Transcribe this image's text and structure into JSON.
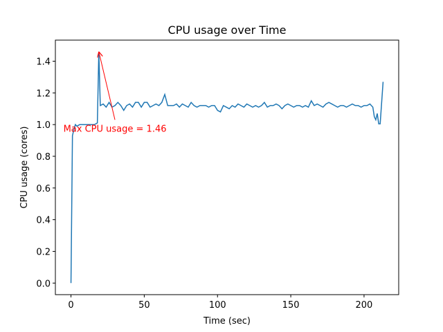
{
  "chart_data": {
    "type": "line",
    "title": "CPU usage over Time",
    "xlabel": "Time (sec)",
    "ylabel": "CPU usage (cores)",
    "x": [
      0,
      1,
      2,
      3,
      4,
      6,
      8,
      10,
      12,
      14,
      16,
      18,
      19,
      20,
      22,
      24,
      26,
      28,
      30,
      32,
      34,
      36,
      38,
      40,
      42,
      44,
      46,
      48,
      50,
      52,
      54,
      56,
      58,
      60,
      62,
      64,
      66,
      68,
      70,
      72,
      74,
      76,
      78,
      80,
      82,
      84,
      86,
      88,
      90,
      92,
      94,
      96,
      98,
      100,
      102,
      104,
      106,
      108,
      110,
      112,
      114,
      116,
      118,
      120,
      122,
      124,
      126,
      128,
      130,
      132,
      134,
      136,
      138,
      140,
      142,
      144,
      146,
      148,
      150,
      152,
      154,
      156,
      158,
      160,
      162,
      164,
      166,
      168,
      170,
      172,
      174,
      176,
      178,
      180,
      182,
      184,
      186,
      188,
      190,
      192,
      194,
      196,
      198,
      200,
      202,
      204,
      206,
      207,
      208,
      209,
      210,
      211,
      213
    ],
    "series": [
      {
        "name": "CPU usage",
        "color": "#1f77b4",
        "values": [
          0,
          0.93,
          0.97,
          1.0,
          0.99,
          1.0,
          1.0,
          1.0,
          1.0,
          1.0,
          1.0,
          1.01,
          1.46,
          1.12,
          1.13,
          1.11,
          1.14,
          1.11,
          1.12,
          1.14,
          1.12,
          1.09,
          1.12,
          1.13,
          1.11,
          1.14,
          1.14,
          1.11,
          1.14,
          1.14,
          1.11,
          1.12,
          1.13,
          1.12,
          1.14,
          1.19,
          1.12,
          1.12,
          1.12,
          1.13,
          1.11,
          1.13,
          1.12,
          1.11,
          1.14,
          1.12,
          1.11,
          1.12,
          1.12,
          1.12,
          1.11,
          1.12,
          1.12,
          1.09,
          1.08,
          1.12,
          1.11,
          1.1,
          1.12,
          1.11,
          1.13,
          1.12,
          1.11,
          1.13,
          1.12,
          1.11,
          1.12,
          1.11,
          1.12,
          1.14,
          1.11,
          1.12,
          1.12,
          1.13,
          1.12,
          1.1,
          1.12,
          1.13,
          1.12,
          1.11,
          1.12,
          1.12,
          1.11,
          1.12,
          1.11,
          1.15,
          1.12,
          1.13,
          1.12,
          1.11,
          1.13,
          1.14,
          1.13,
          1.12,
          1.11,
          1.12,
          1.12,
          1.11,
          1.12,
          1.13,
          1.12,
          1.12,
          1.11,
          1.12,
          1.12,
          1.13,
          1.11,
          1.05,
          1.03,
          1.07,
          1.005,
          1.005,
          1.27
        ]
      }
    ],
    "xlim": [
      -10.65,
      223.65
    ],
    "ylim": [
      -0.073,
      1.533
    ],
    "xticks": [
      0,
      50,
      100,
      150,
      200
    ],
    "yticks": [
      {
        "value": 0,
        "label": "0.0"
      },
      {
        "value": 0.2,
        "label": "0.2"
      },
      {
        "value": 0.4,
        "label": "0.4"
      },
      {
        "value": 0.6,
        "label": "0.6"
      },
      {
        "value": 0.8,
        "label": "0.8"
      },
      {
        "value": 1.0,
        "label": "1.0"
      },
      {
        "value": 1.2,
        "label": "1.2"
      },
      {
        "value": 1.4,
        "label": "1.4"
      }
    ],
    "annotation": {
      "text": "Max CPU usage = 1.46",
      "color": "#ff0000",
      "xy": [
        19,
        1.46
      ],
      "xytext": [
        30,
        1.03
      ]
    }
  }
}
